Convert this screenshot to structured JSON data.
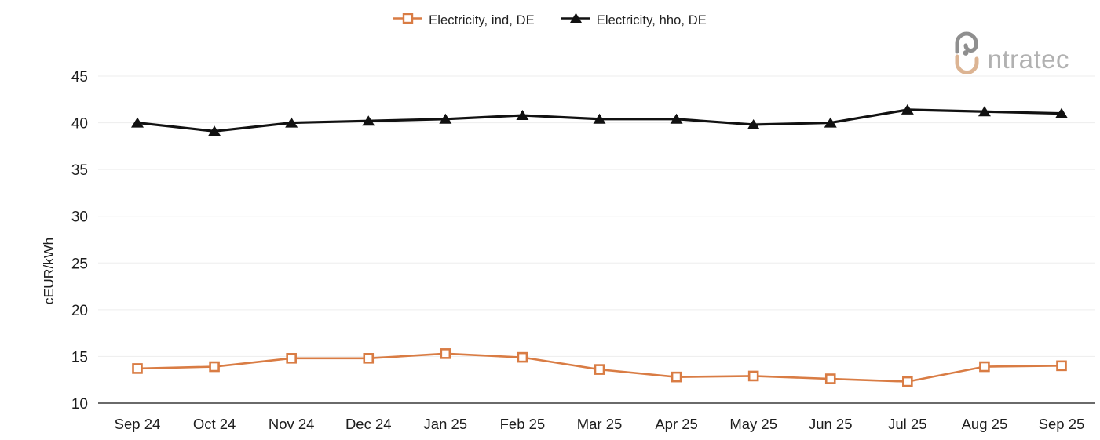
{
  "legend": {
    "items": [
      {
        "label": "Electricity, ind, DE",
        "marker": "hollow-square",
        "color": "#d97c44"
      },
      {
        "label": "Electricity, hho, DE",
        "marker": "filled-triangle",
        "color": "#111111"
      }
    ]
  },
  "logo": {
    "text": "ntratec",
    "icon": "intratec-mark-icon",
    "text_color": "#b1b1b1",
    "icon_gray": "#8f8f8f",
    "icon_tan": "#dcb493"
  },
  "chart_data": {
    "type": "line",
    "title": "",
    "ylabel": "cEUR/kWh",
    "xlabel": "",
    "categories": [
      "Sep 24",
      "Oct 24",
      "Nov 24",
      "Dec 24",
      "Jan 25",
      "Feb 25",
      "Mar 25",
      "Apr 25",
      "May 25",
      "Jun 25",
      "Jul 25",
      "Aug 25",
      "Sep 25"
    ],
    "series": [
      {
        "name": "Electricity, ind, DE",
        "color": "#d97c44",
        "marker": "square",
        "values": [
          13.7,
          13.9,
          14.8,
          14.8,
          15.3,
          14.9,
          13.6,
          12.8,
          12.9,
          12.6,
          12.3,
          13.9,
          14.0
        ]
      },
      {
        "name": "Electricity, hho, DE",
        "color": "#111111",
        "marker": "triangle",
        "values": [
          40.0,
          39.1,
          40.0,
          40.2,
          40.4,
          40.8,
          40.4,
          40.4,
          39.8,
          40.0,
          41.4,
          41.2,
          41.0
        ]
      }
    ],
    "yticks": [
      10,
      15,
      20,
      25,
      30,
      35,
      40,
      45
    ],
    "ylim": [
      10,
      45
    ],
    "grid": true,
    "legend_position": "top",
    "colors": {
      "gridline": "#ededed",
      "axis_line": "#6a6a6a",
      "tick_label": "#1d1d1d"
    }
  }
}
